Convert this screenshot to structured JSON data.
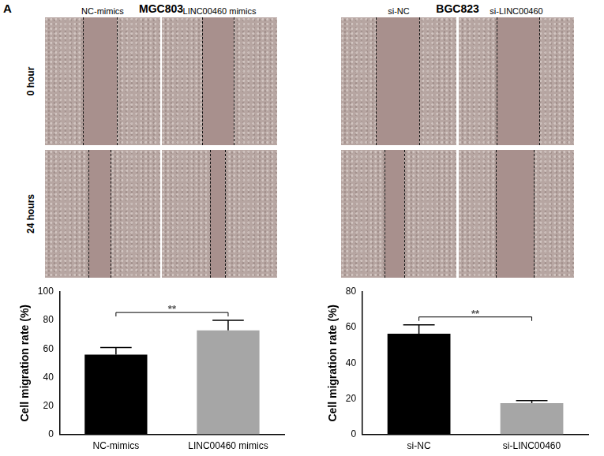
{
  "panel": "A",
  "image_grid": {
    "rows": [
      "0 hour",
      "24 hours"
    ],
    "groups": [
      {
        "title": "MGC803",
        "columns": [
          "NC-mimics",
          "LINC00460 mimics"
        ]
      },
      {
        "title": "BGC823",
        "columns": [
          "si-NC",
          "si-LINC00460"
        ]
      }
    ]
  },
  "chart_data": [
    {
      "type": "bar",
      "y_label": "Cell migration rate (%)",
      "categories": [
        "NC-mimics",
        "LINC00460 mimics"
      ],
      "values": [
        56,
        73
      ],
      "errors": [
        5,
        7
      ],
      "colors": [
        "#000000",
        "#a6a6a6"
      ],
      "ylim": [
        0,
        100
      ],
      "yticks": [
        0,
        20,
        40,
        60,
        80,
        100
      ],
      "grid": false,
      "significance": [
        {
          "label": "**",
          "categories": [
            "NC-mimics",
            "LINC00460 mimics"
          ]
        }
      ]
    },
    {
      "type": "bar",
      "y_label": "Cell migration rate (%)",
      "categories": [
        "si-NC",
        "si-LINC00460"
      ],
      "values": [
        56.5,
        17.5
      ],
      "errors": [
        5,
        1.5
      ],
      "colors": [
        "#000000",
        "#a6a6a6"
      ],
      "ylim": [
        0,
        80
      ],
      "yticks": [
        0,
        20,
        40,
        60,
        80
      ],
      "grid": false,
      "significance": [
        {
          "label": "**",
          "categories": [
            "si-NC",
            "si-LINC00460"
          ]
        }
      ]
    }
  ]
}
